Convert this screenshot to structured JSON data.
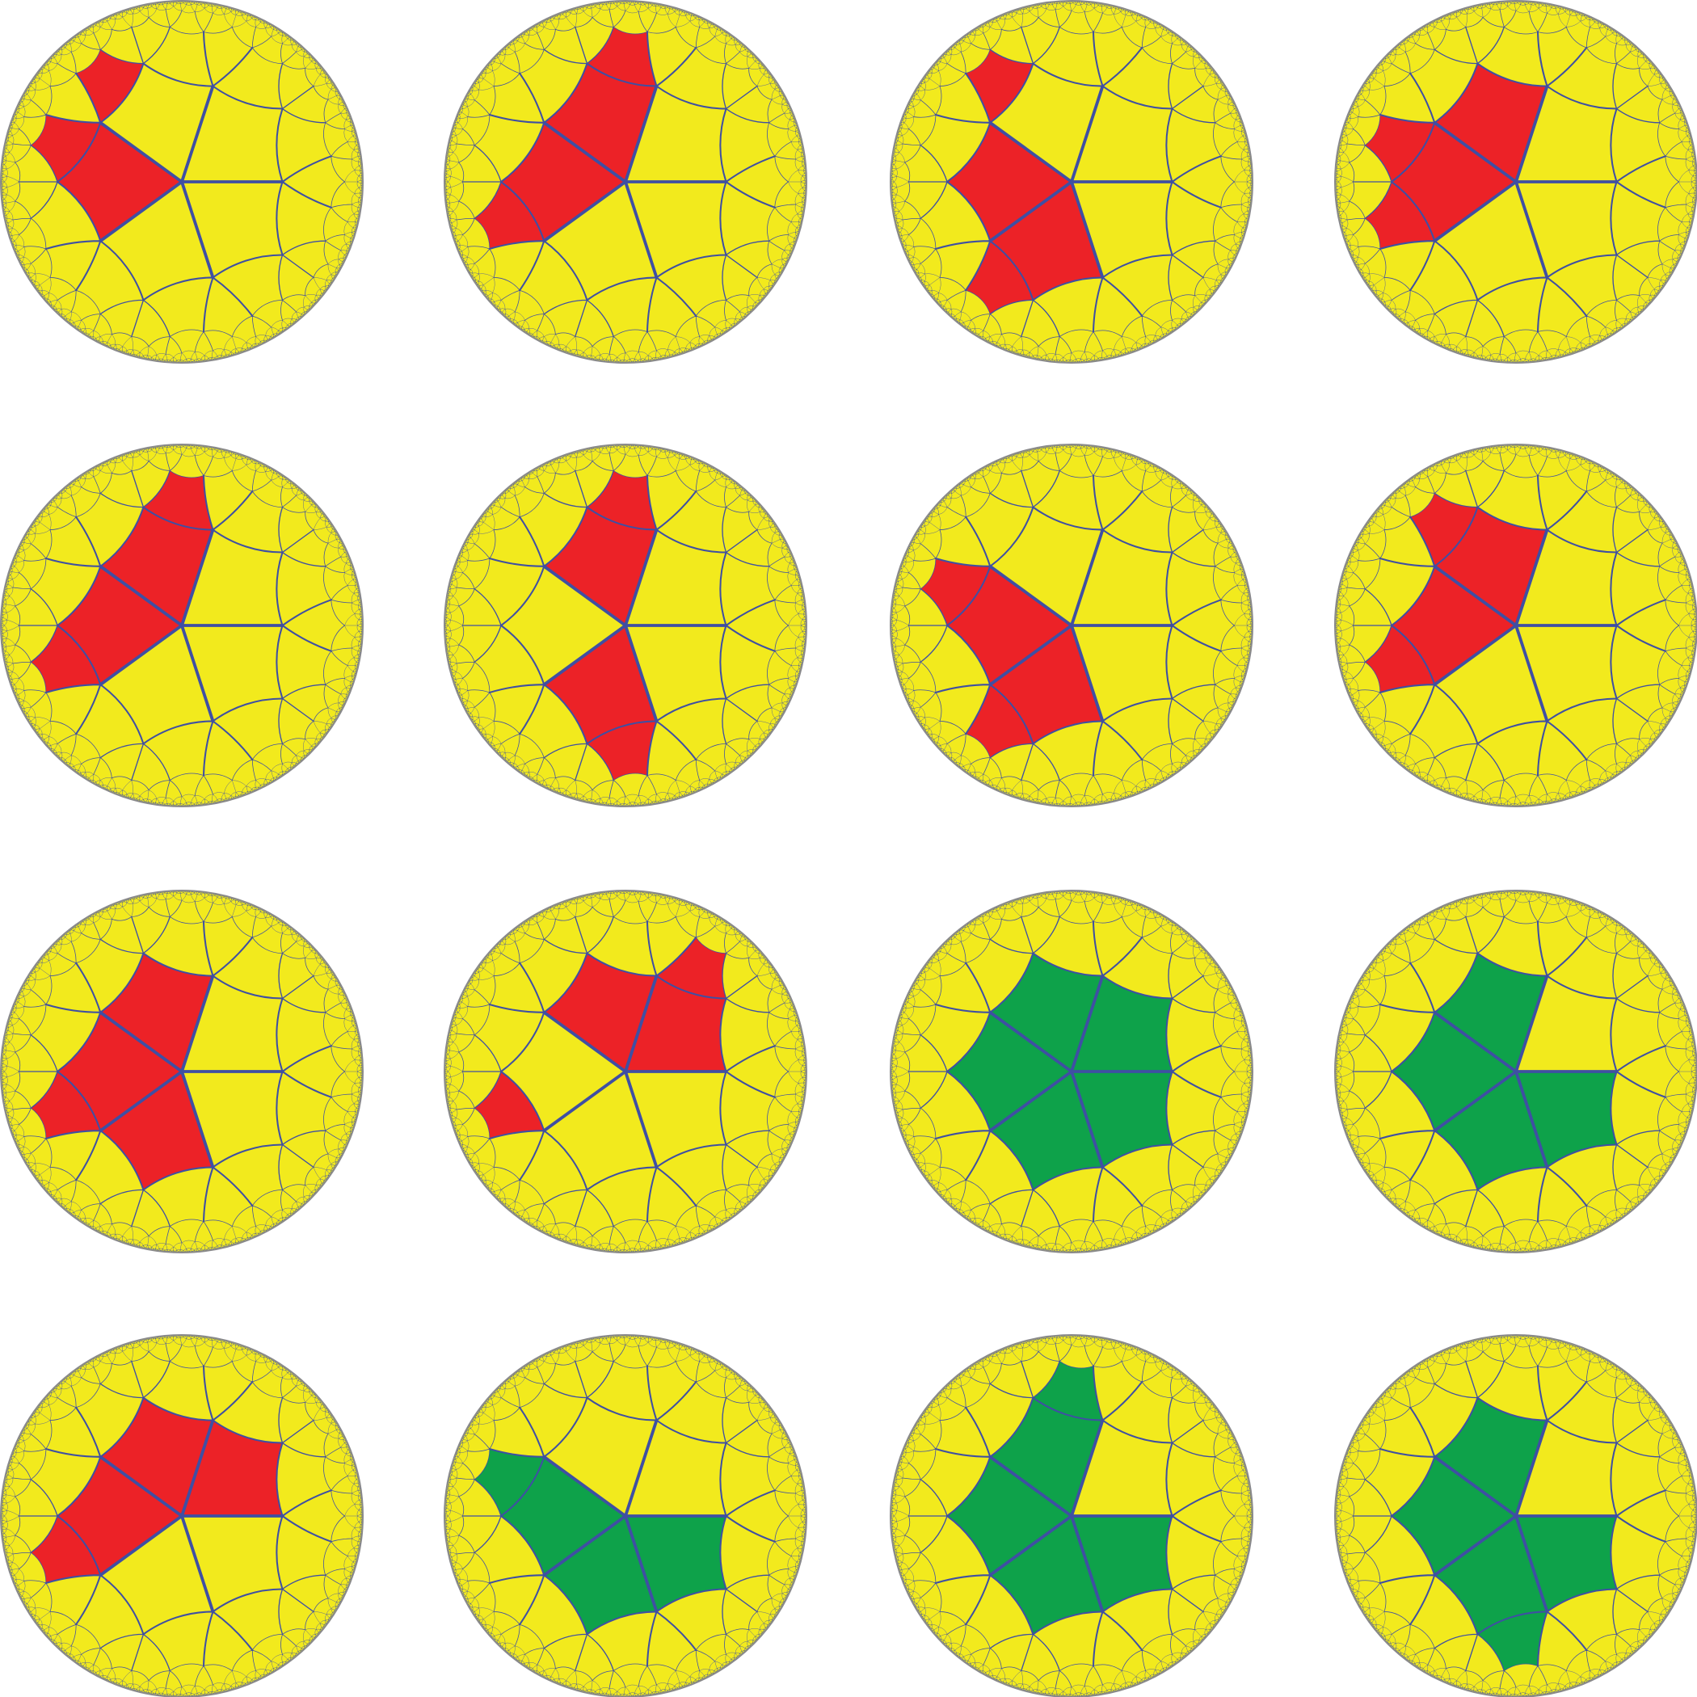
{
  "disks": [
    {
      "fill": "#ec2227"
    },
    {
      "fill": "#ec2227"
    },
    {
      "fill": "#ec2227"
    },
    {
      "fill": "#ec2227"
    },
    {
      "fill": "#ec2227"
    },
    {
      "fill": "#ec2227"
    },
    {
      "fill": "#ec2227"
    },
    {
      "fill": "#ec2227"
    },
    {
      "fill": "#ec2227"
    },
    {
      "fill": "#ec2227"
    },
    {
      "fill": "#0ea24a"
    },
    {
      "fill": "#0ea24a"
    },
    {
      "fill": "#ec2227"
    },
    {
      "fill": "#0ea24a"
    },
    {
      "fill": "#0ea24a"
    },
    {
      "fill": "#0ea24a"
    }
  ],
  "tile_fill": "#f2ea1d",
  "edge_color": "#3f4fa3",
  "rim_color": "#8a8a8a"
}
